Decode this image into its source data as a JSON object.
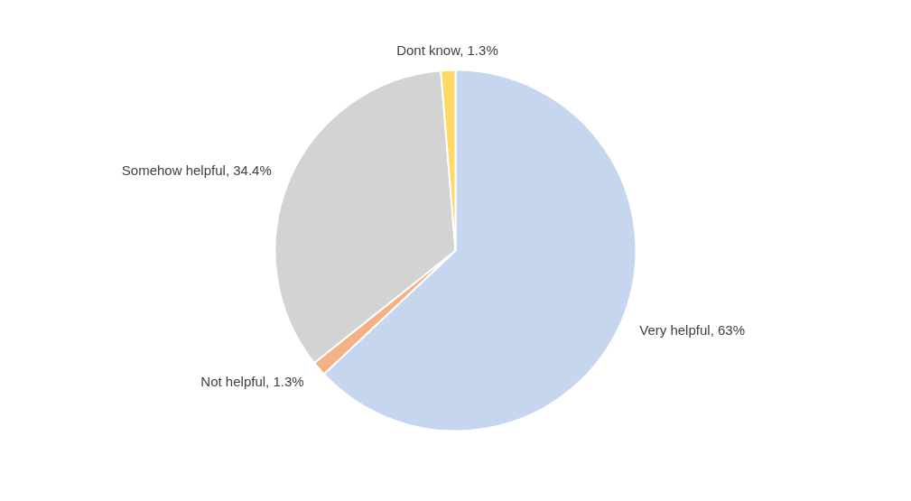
{
  "chart_data": {
    "type": "pie",
    "categories": [
      "Very helpful",
      "Not helpful",
      "Somehow helpful",
      "Dont know"
    ],
    "values": [
      63,
      1.3,
      34.4,
      1.3
    ],
    "colors": [
      "#c6d6ef",
      "#f4b183",
      "#d3d3d3",
      "#ffd966"
    ],
    "value_labels": [
      "63%",
      "1.3%",
      "34.4%",
      "1.3%"
    ],
    "legend": false
  }
}
